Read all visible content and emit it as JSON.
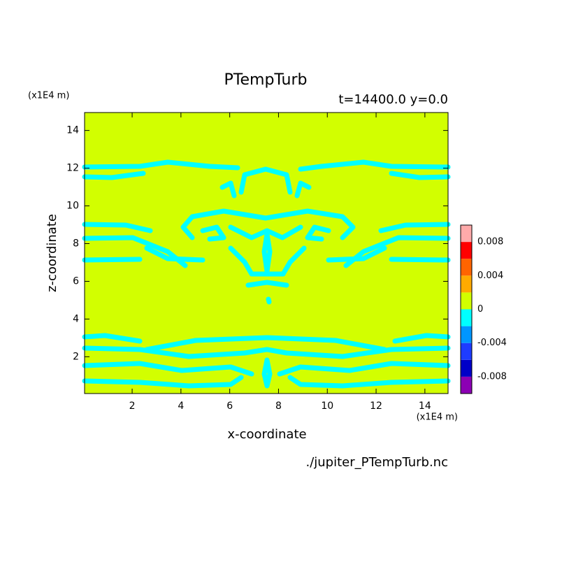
{
  "chart_data": {
    "type": "contour",
    "title": "PTempTurb",
    "subtitle": "t=14400.0 y=0.0",
    "xlabel": "x-coordinate",
    "ylabel": "z-coordinate",
    "x_unit": "(x1E4 m)",
    "y_unit": "(x1E4 m)",
    "source": "./jupiter_PTempTurb.nc",
    "xlim": [
      0.05,
      14.95
    ],
    "ylim": [
      0.05,
      14.95
    ],
    "xticks": [
      2,
      4,
      6,
      8,
      10,
      12,
      14
    ],
    "yticks": [
      2,
      4,
      6,
      8,
      10,
      12,
      14
    ],
    "cbar_levels": [
      -0.01,
      -0.008,
      -0.006,
      -0.004,
      -0.002,
      0,
      0.002,
      0.004,
      0.006,
      0.008,
      0.01
    ],
    "cbar_colors": [
      "#8c00b4",
      "#0000c8",
      "#1e3cff",
      "#0096ff",
      "#00ffff",
      "#d2ff00",
      "#ffaa00",
      "#ff6400",
      "#ff0000",
      "#ffaaaa"
    ],
    "cbar_ticks": [
      -0.008,
      -0.004,
      0,
      0.004,
      0.008
    ]
  }
}
